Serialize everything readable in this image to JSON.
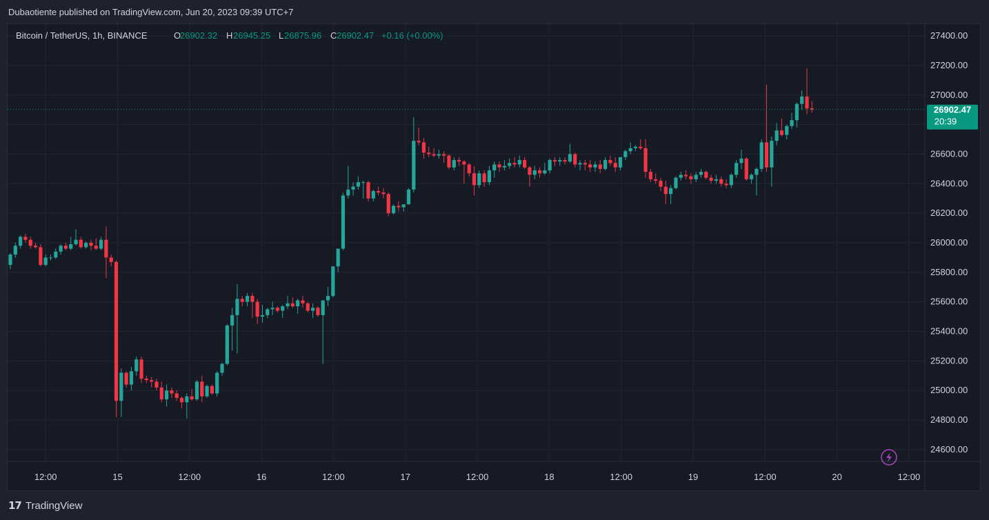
{
  "header": {
    "published_text": "Dubaotiente published on TradingView.com, Jun 20, 2023 09:39 UTC+7"
  },
  "legend": {
    "symbol": "Bitcoin / TetherUS, 1h, BINANCE",
    "open_label": "O",
    "open_value": "26902.32",
    "high_label": "H",
    "high_value": "26945.25",
    "low_label": "L",
    "low_value": "26875.96",
    "close_label": "C",
    "close_value": "26902.47",
    "change": "+0.16 (+0.00%)"
  },
  "price_tag": {
    "price": "26902.47",
    "countdown": "20:39"
  },
  "footer": {
    "brand": "TradingView",
    "logo_icon": "tradingview-logo-icon"
  },
  "colors": {
    "up": "#26a69a",
    "down": "#f23645",
    "grid": "#232632",
    "last_price": "#089981",
    "lightning": "#ab47bc"
  },
  "chart_data": {
    "type": "candlestick",
    "symbol": "BTCUSDT",
    "interval": "1h",
    "ylim": [
      24520,
      27480
    ],
    "y_ticks": [
      "27400.00",
      "27200.00",
      "27000.00",
      "26800.00",
      "26600.00",
      "26400.00",
      "26200.00",
      "26000.00",
      "25800.00",
      "25600.00",
      "25400.00",
      "25200.00",
      "25000.00",
      "24800.00",
      "24600.00"
    ],
    "x_ticks": [
      "12:00",
      "15",
      "12:00",
      "16",
      "12:00",
      "17",
      "12:00",
      "18",
      "12:00",
      "19",
      "12:00",
      "20",
      "12:00"
    ],
    "last_price": 26902.47,
    "candles": [
      [
        25850,
        25930,
        25820,
        25920
      ],
      [
        25920,
        26000,
        25900,
        25980
      ],
      [
        25980,
        26050,
        25960,
        26040
      ],
      [
        26040,
        26060,
        26000,
        26020
      ],
      [
        26020,
        26040,
        25960,
        25980
      ],
      [
        25980,
        26000,
        25960,
        25970
      ],
      [
        25970,
        25990,
        25840,
        25850
      ],
      [
        25850,
        25920,
        25840,
        25900
      ],
      [
        25900,
        25920,
        25880,
        25900
      ],
      [
        25900,
        25960,
        25890,
        25940
      ],
      [
        25940,
        25990,
        25920,
        25980
      ],
      [
        25980,
        26000,
        25950,
        25960
      ],
      [
        25960,
        26040,
        25950,
        25990
      ],
      [
        25990,
        26090,
        25980,
        26020
      ],
      [
        26020,
        26040,
        25960,
        25970
      ],
      [
        25970,
        26010,
        25960,
        26000
      ],
      [
        26000,
        26020,
        25950,
        25980
      ],
      [
        25980,
        26030,
        25950,
        25960
      ],
      [
        25960,
        26040,
        25950,
        26020
      ],
      [
        26020,
        26110,
        25760,
        25900
      ],
      [
        25900,
        25920,
        25840,
        25870
      ],
      [
        25870,
        25880,
        24820,
        24930
      ],
      [
        24930,
        25150,
        24820,
        25120
      ],
      [
        25120,
        25130,
        25020,
        25040
      ],
      [
        25040,
        25160,
        25000,
        25130
      ],
      [
        25130,
        25230,
        25100,
        25210
      ],
      [
        25210,
        25230,
        25050,
        25080
      ],
      [
        25080,
        25100,
        25050,
        25070
      ],
      [
        25070,
        25090,
        25020,
        25060
      ],
      [
        25060,
        25080,
        25000,
        25020
      ],
      [
        25020,
        25060,
        24920,
        24940
      ],
      [
        24940,
        25040,
        24890,
        25000
      ],
      [
        25000,
        25020,
        24950,
        24980
      ],
      [
        24980,
        25000,
        24930,
        24950
      ],
      [
        24950,
        24960,
        24880,
        24920
      ],
      [
        24920,
        24980,
        24810,
        24960
      ],
      [
        24960,
        25010,
        24930,
        24940
      ],
      [
        24940,
        25070,
        24930,
        25060
      ],
      [
        25060,
        25100,
        24920,
        24960
      ],
      [
        24960,
        25040,
        24950,
        25030
      ],
      [
        25030,
        25040,
        24970,
        24980
      ],
      [
        24980,
        25130,
        24960,
        25120
      ],
      [
        25120,
        25190,
        25100,
        25180
      ],
      [
        25180,
        25450,
        25170,
        25440
      ],
      [
        25440,
        25560,
        25270,
        25510
      ],
      [
        25510,
        25720,
        25250,
        25620
      ],
      [
        25620,
        25640,
        25570,
        25600
      ],
      [
        25600,
        25660,
        25570,
        25640
      ],
      [
        25640,
        25660,
        25490,
        25600
      ],
      [
        25600,
        25620,
        25450,
        25500
      ],
      [
        25500,
        25580,
        25460,
        25510
      ],
      [
        25510,
        25560,
        25490,
        25550
      ],
      [
        25550,
        25600,
        25510,
        25560
      ],
      [
        25560,
        25570,
        25530,
        25540
      ],
      [
        25540,
        25580,
        25490,
        25570
      ],
      [
        25570,
        25640,
        25550,
        25590
      ],
      [
        25590,
        25630,
        25560,
        25570
      ],
      [
        25570,
        25620,
        25520,
        25610
      ],
      [
        25610,
        25640,
        25560,
        25590
      ],
      [
        25590,
        25600,
        25530,
        25540
      ],
      [
        25540,
        25590,
        25490,
        25560
      ],
      [
        25560,
        25570,
        25500,
        25510
      ],
      [
        25510,
        25600,
        25180,
        25610
      ],
      [
        25610,
        25700,
        25570,
        25640
      ],
      [
        25640,
        25840,
        25630,
        25840
      ],
      [
        25840,
        25960,
        25800,
        25960
      ],
      [
        25960,
        26340,
        25950,
        26320
      ],
      [
        26320,
        26520,
        26300,
        26360
      ],
      [
        26360,
        26410,
        26320,
        26380
      ],
      [
        26380,
        26450,
        26360,
        26410
      ],
      [
        26410,
        26420,
        26300,
        26410
      ],
      [
        26410,
        26420,
        26280,
        26300
      ],
      [
        26300,
        26360,
        26280,
        26350
      ],
      [
        26350,
        26380,
        26320,
        26340
      ],
      [
        26340,
        26370,
        26300,
        26330
      ],
      [
        26330,
        26340,
        26180,
        26200
      ],
      [
        26200,
        26260,
        26190,
        26250
      ],
      [
        26250,
        26280,
        26210,
        26240
      ],
      [
        26240,
        26250,
        26210,
        26260
      ],
      [
        26260,
        26370,
        26260,
        26360
      ],
      [
        26360,
        26850,
        26340,
        26690
      ],
      [
        26690,
        26780,
        26660,
        26680
      ],
      [
        26680,
        26710,
        26570,
        26610
      ],
      [
        26610,
        26650,
        26580,
        26600
      ],
      [
        26600,
        26640,
        26580,
        26590
      ],
      [
        26590,
        26630,
        26570,
        26600
      ],
      [
        26600,
        26620,
        26540,
        26590
      ],
      [
        26590,
        26600,
        26500,
        26510
      ],
      [
        26510,
        26580,
        26490,
        26560
      ],
      [
        26560,
        26580,
        26520,
        26550
      ],
      [
        26550,
        26560,
        26400,
        26530
      ],
      [
        26530,
        26540,
        26450,
        26470
      ],
      [
        26470,
        26520,
        26320,
        26390
      ],
      [
        26390,
        26490,
        26370,
        26470
      ],
      [
        26470,
        26490,
        26380,
        26410
      ],
      [
        26410,
        26520,
        26390,
        26490
      ],
      [
        26490,
        26550,
        26440,
        26530
      ],
      [
        26530,
        26550,
        26480,
        26510
      ],
      [
        26510,
        26560,
        26490,
        26520
      ],
      [
        26520,
        26570,
        26500,
        26540
      ],
      [
        26540,
        26580,
        26510,
        26530
      ],
      [
        26530,
        26590,
        26510,
        26560
      ],
      [
        26560,
        26580,
        26500,
        26510
      ],
      [
        26510,
        26520,
        26380,
        26460
      ],
      [
        26460,
        26520,
        26430,
        26490
      ],
      [
        26490,
        26510,
        26440,
        26470
      ],
      [
        26470,
        26540,
        26460,
        26490
      ],
      [
        26490,
        26570,
        26470,
        26560
      ],
      [
        26560,
        26580,
        26520,
        26550
      ],
      [
        26550,
        26580,
        26520,
        26560
      ],
      [
        26560,
        26580,
        26530,
        26550
      ],
      [
        26550,
        26670,
        26540,
        26600
      ],
      [
        26600,
        26610,
        26510,
        26530
      ],
      [
        26530,
        26560,
        26490,
        26540
      ],
      [
        26540,
        26560,
        26490,
        26530
      ],
      [
        26530,
        26560,
        26480,
        26510
      ],
      [
        26510,
        26550,
        26480,
        26530
      ],
      [
        26530,
        26560,
        26470,
        26500
      ],
      [
        26500,
        26580,
        26490,
        26560
      ],
      [
        26560,
        26590,
        26520,
        26540
      ],
      [
        26540,
        26580,
        26480,
        26510
      ],
      [
        26510,
        26560,
        26490,
        26580
      ],
      [
        26580,
        26630,
        26560,
        26620
      ],
      [
        26620,
        26680,
        26600,
        26640
      ],
      [
        26640,
        26660,
        26620,
        26650
      ],
      [
        26650,
        26700,
        26630,
        26640
      ],
      [
        26640,
        26700,
        26440,
        26480
      ],
      [
        26480,
        26500,
        26410,
        26430
      ],
      [
        26430,
        26470,
        26400,
        26420
      ],
      [
        26420,
        26440,
        26350,
        26380
      ],
      [
        26380,
        26420,
        26260,
        26330
      ],
      [
        26330,
        26390,
        26260,
        26370
      ],
      [
        26370,
        26450,
        26360,
        26440
      ],
      [
        26440,
        26480,
        26420,
        26460
      ],
      [
        26460,
        26490,
        26430,
        26450
      ],
      [
        26450,
        26470,
        26400,
        26430
      ],
      [
        26430,
        26480,
        26410,
        26460
      ],
      [
        26460,
        26500,
        26440,
        26480
      ],
      [
        26480,
        26490,
        26430,
        26440
      ],
      [
        26440,
        26460,
        26400,
        26420
      ],
      [
        26420,
        26460,
        26400,
        26430
      ],
      [
        26430,
        26450,
        26380,
        26400
      ],
      [
        26400,
        26430,
        26370,
        26390
      ],
      [
        26390,
        26470,
        26370,
        26460
      ],
      [
        26460,
        26560,
        26440,
        26540
      ],
      [
        26540,
        26630,
        26500,
        26570
      ],
      [
        26570,
        26580,
        26420,
        26430
      ],
      [
        26430,
        26470,
        26400,
        26460
      ],
      [
        26460,
        26510,
        26320,
        26500
      ],
      [
        26500,
        26700,
        26480,
        26680
      ],
      [
        26680,
        27070,
        26480,
        26510
      ],
      [
        26510,
        26720,
        26380,
        26690
      ],
      [
        26690,
        26810,
        26660,
        26760
      ],
      [
        26760,
        26840,
        26720,
        26730
      ],
      [
        26730,
        26800,
        26700,
        26790
      ],
      [
        26790,
        26880,
        26770,
        26830
      ],
      [
        26830,
        26950,
        26780,
        26940
      ],
      [
        26940,
        27030,
        26900,
        26990
      ],
      [
        26990,
        27180,
        26870,
        26910
      ],
      [
        26910,
        26960,
        26880,
        26902
      ]
    ]
  }
}
